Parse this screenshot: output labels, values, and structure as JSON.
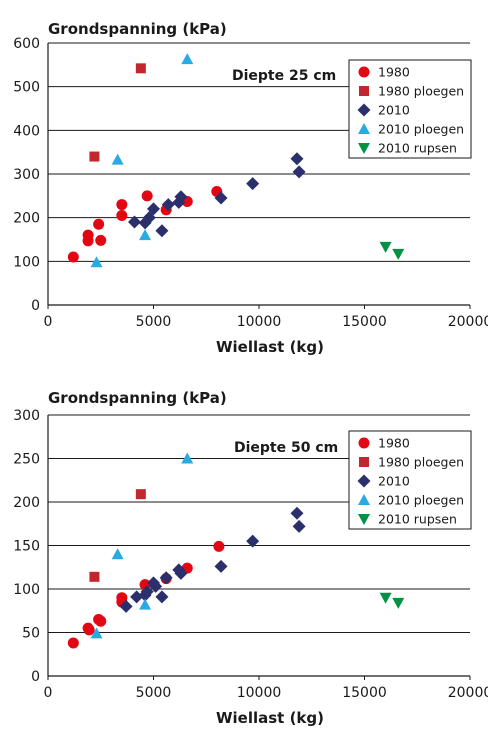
{
  "chart_data": [
    {
      "type": "scatter",
      "title": "",
      "ylabel": "Grondspanning (kPa)",
      "xlabel": "Wiellast (kg)",
      "annotation": "Diepte 25 cm",
      "xlim": [
        0,
        20000
      ],
      "ylim": [
        0,
        600
      ],
      "xticks": [
        "0",
        "5000",
        "10000",
        "15000",
        "20000"
      ],
      "yticks": [
        "0",
        "100",
        "200",
        "300",
        "400",
        "500",
        "600"
      ],
      "grid": "horizontal",
      "legend_position": "top-right",
      "series": [
        {
          "name": "1980",
          "marker": "circle",
          "color": "#e30613",
          "points": [
            [
              1200,
              110
            ],
            [
              1900,
              160
            ],
            [
              1900,
              147
            ],
            [
              2400,
              185
            ],
            [
              2500,
              148
            ],
            [
              3500,
              230
            ],
            [
              3500,
              205
            ],
            [
              4700,
              250
            ],
            [
              5600,
              218
            ],
            [
              6600,
              237
            ],
            [
              8000,
              260
            ]
          ]
        },
        {
          "name": "1980 ploegen",
          "marker": "square",
          "color": "#c1272d",
          "points": [
            [
              2200,
              340
            ],
            [
              4400,
              542
            ]
          ]
        },
        {
          "name": "2010",
          "marker": "diamond",
          "color": "#2b2f6b",
          "points": [
            [
              4100,
              190
            ],
            [
              4600,
              188
            ],
            [
              4800,
              200
            ],
            [
              5000,
              220
            ],
            [
              5400,
              170
            ],
            [
              5700,
              230
            ],
            [
              6200,
              235
            ],
            [
              6300,
              248
            ],
            [
              8200,
              245
            ],
            [
              9700,
              278
            ],
            [
              11800,
              335
            ],
            [
              11900,
              305
            ]
          ]
        },
        {
          "name": "2010 ploegen",
          "marker": "triangle-up",
          "color": "#29abe2",
          "points": [
            [
              2300,
              98
            ],
            [
              3300,
              333
            ],
            [
              4600,
              160
            ],
            [
              6600,
              563
            ]
          ]
        },
        {
          "name": "2010 rupsen",
          "marker": "triangle-down",
          "color": "#009245",
          "points": [
            [
              16000,
              133
            ],
            [
              16600,
              117
            ]
          ]
        }
      ]
    },
    {
      "type": "scatter",
      "title": "",
      "ylabel": "Grondspanning (kPa)",
      "xlabel": "Wiellast (kg)",
      "annotation": "Diepte 50 cm",
      "xlim": [
        0,
        20000
      ],
      "ylim": [
        0,
        300
      ],
      "xticks": [
        "0",
        "5000",
        "10000",
        "15000",
        "20000"
      ],
      "yticks": [
        "0",
        "50",
        "100",
        "150",
        "200",
        "250",
        "300"
      ],
      "grid": "horizontal",
      "legend_position": "top-right",
      "series": [
        {
          "name": "1980",
          "marker": "circle",
          "color": "#e30613",
          "points": [
            [
              1200,
              38
            ],
            [
              1900,
              55
            ],
            [
              1950,
              53
            ],
            [
              2400,
              65
            ],
            [
              2500,
              63
            ],
            [
              3500,
              90
            ],
            [
              3500,
              85
            ],
            [
              4600,
              105
            ],
            [
              5600,
              112
            ],
            [
              6600,
              124
            ],
            [
              8100,
              149
            ]
          ]
        },
        {
          "name": "1980 ploegen",
          "marker": "square",
          "color": "#c1272d",
          "points": [
            [
              2200,
              114
            ],
            [
              4400,
              209
            ]
          ]
        },
        {
          "name": "2010",
          "marker": "diamond",
          "color": "#2b2f6b",
          "points": [
            [
              3700,
              80
            ],
            [
              4200,
              91
            ],
            [
              4600,
              93
            ],
            [
              4700,
              97
            ],
            [
              5000,
              107
            ],
            [
              5100,
              103
            ],
            [
              5400,
              91
            ],
            [
              5600,
              113
            ],
            [
              6200,
              122
            ],
            [
              6300,
              118
            ],
            [
              8200,
              126
            ],
            [
              9700,
              155
            ],
            [
              11800,
              187
            ],
            [
              11900,
              172
            ]
          ]
        },
        {
          "name": "2010 ploegen",
          "marker": "triangle-up",
          "color": "#29abe2",
          "points": [
            [
              2300,
              49
            ],
            [
              3300,
              140
            ],
            [
              4600,
              82
            ],
            [
              6600,
              250
            ]
          ]
        },
        {
          "name": "2010 rupsen",
          "marker": "triangle-down",
          "color": "#009245",
          "points": [
            [
              16000,
              90
            ],
            [
              16600,
              84
            ]
          ]
        }
      ]
    }
  ]
}
